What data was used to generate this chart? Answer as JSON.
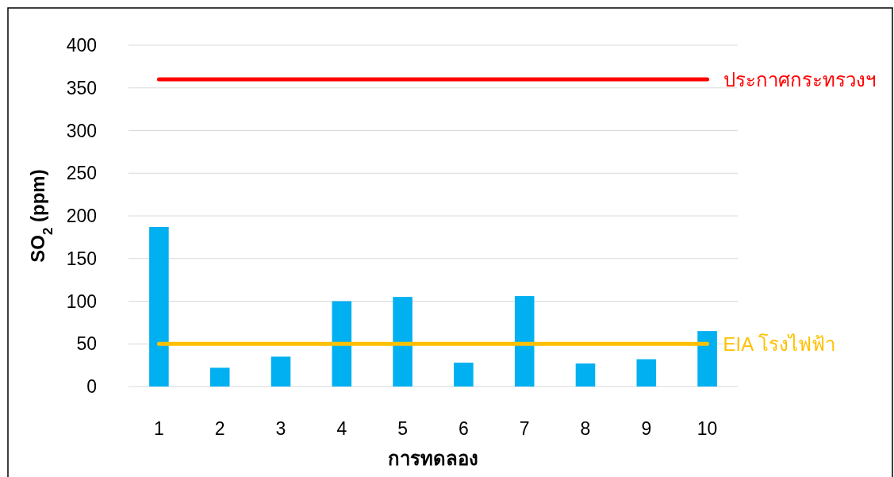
{
  "chart_data": {
    "type": "bar",
    "xlabel": "การทดลอง",
    "ylabel": "SO$_{2}$ (ppm)",
    "categories": [
      "1",
      "2",
      "3",
      "4",
      "5",
      "6",
      "7",
      "8",
      "9",
      "10"
    ],
    "series": [
      {
        "color": "#00b0f0",
        "values": [
          187,
          22,
          35,
          100,
          105,
          28,
          106,
          27,
          32,
          65
        ]
      },
      {
        "type": "line",
        "name": "ประกาศกระทรวงฯ",
        "color": "#ff0000",
        "values": [
          360,
          360,
          360,
          360,
          360,
          360,
          360,
          360,
          360,
          360
        ]
      },
      {
        "type": "line",
        "name": "EIA โรงไฟฟ้า",
        "color": "#ffc000",
        "values": [
          50,
          50,
          50,
          50,
          50,
          50,
          50,
          50,
          50,
          50
        ]
      }
    ],
    "ylim": [
      0,
      400
    ],
    "yticks": [
      0,
      50,
      100,
      150,
      200,
      250,
      300,
      350,
      400
    ],
    "grid": "y"
  }
}
